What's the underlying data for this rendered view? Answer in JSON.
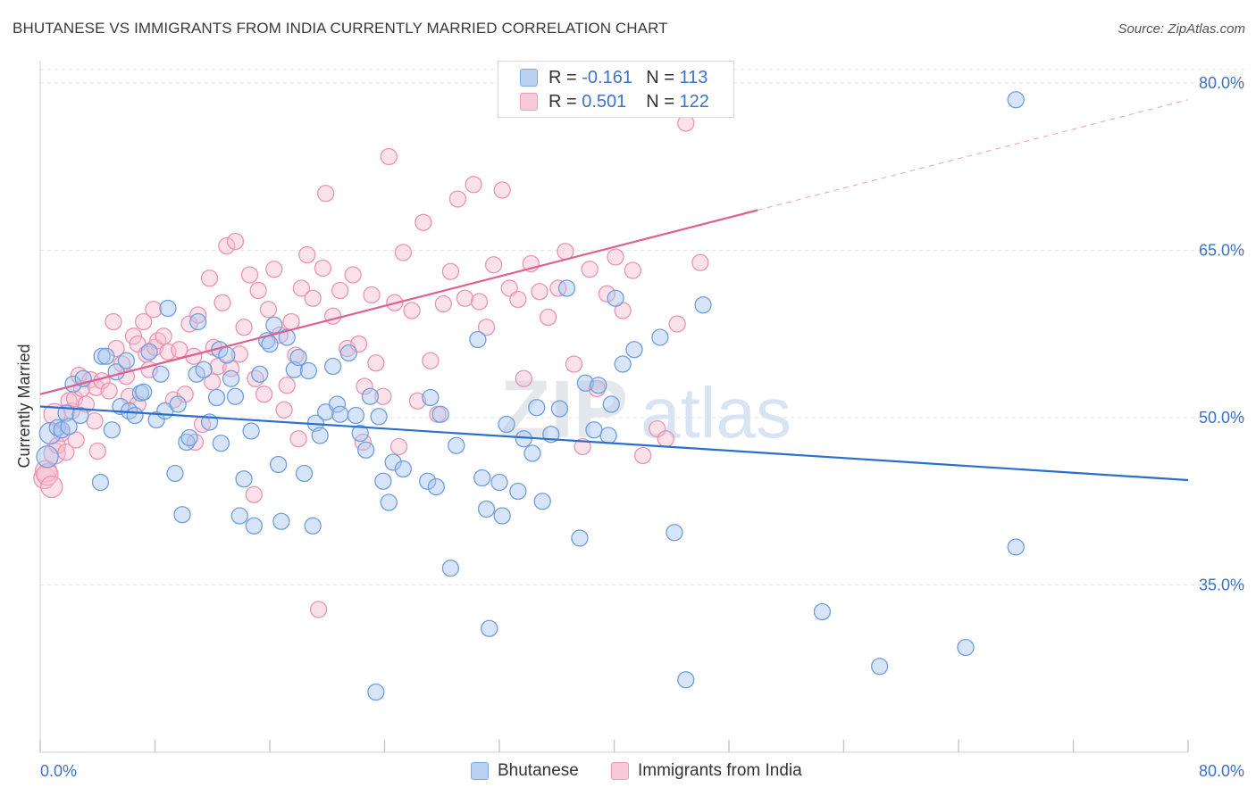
{
  "title": "BHUTANESE VS IMMIGRANTS FROM INDIA CURRENTLY MARRIED CORRELATION CHART",
  "source": "Source: ZipAtlas.com",
  "watermark": "ZIPatlas",
  "colors": {
    "blue_fill": "#a8c6f0",
    "blue_stroke": "#6f9fe0",
    "blue_line": "#2a6fd0",
    "pink_fill": "#f6bfd0",
    "pink_stroke": "#ee93b0",
    "pink_line": "#e0608f",
    "axis_text": "#3b73c8"
  },
  "legend": {
    "r_label": "R =",
    "n_label": "N =",
    "series": [
      {
        "r": "-0.161",
        "n": "113"
      },
      {
        "r": "0.501",
        "n": "122"
      }
    ]
  },
  "chart_data": {
    "type": "scatter",
    "title": "BHUTANESE VS IMMIGRANTS FROM INDIA CURRENTLY MARRIED CORRELATION CHART",
    "xlabel": "",
    "ylabel": "Currently Married",
    "xlim": [
      0,
      80
    ],
    "ylim": [
      20,
      82
    ],
    "x_ticks": [
      "0.0%",
      "80.0%"
    ],
    "y_ticks": [
      {
        "value": 35,
        "label": "35.0%"
      },
      {
        "value": 50,
        "label": "50.0%"
      },
      {
        "value": 65,
        "label": "65.0%"
      },
      {
        "value": 80,
        "label": "80.0%"
      }
    ],
    "grid": true,
    "legend_position": "bottom",
    "series": [
      {
        "name": "Bhutanese",
        "color": "#a8c6f0",
        "trend": {
          "x": [
            0,
            80
          ],
          "y": [
            51.0,
            44.4
          ],
          "extrapolated_from": null
        },
        "points": [
          [
            0.5,
            46.5
          ],
          [
            0.7,
            48.6
          ],
          [
            1.2,
            49.1
          ],
          [
            1.5,
            48.9
          ],
          [
            1.8,
            50.4
          ],
          [
            2.0,
            49.2
          ],
          [
            2.3,
            53.0
          ],
          [
            2.8,
            50.2
          ],
          [
            3.0,
            53.5
          ],
          [
            4.2,
            44.2
          ],
          [
            4.3,
            55.5
          ],
          [
            4.6,
            55.5
          ],
          [
            5.0,
            48.9
          ],
          [
            5.3,
            54.1
          ],
          [
            5.6,
            51.0
          ],
          [
            6.0,
            55.1
          ],
          [
            6.2,
            50.6
          ],
          [
            6.6,
            50.2
          ],
          [
            7.0,
            52.2
          ],
          [
            7.2,
            52.3
          ],
          [
            7.6,
            55.9
          ],
          [
            8.1,
            49.8
          ],
          [
            8.4,
            53.9
          ],
          [
            8.7,
            50.6
          ],
          [
            8.9,
            59.8
          ],
          [
            9.4,
            45.0
          ],
          [
            9.6,
            51.2
          ],
          [
            9.9,
            41.3
          ],
          [
            10.2,
            47.8
          ],
          [
            10.4,
            48.2
          ],
          [
            10.9,
            53.9
          ],
          [
            11.0,
            58.6
          ],
          [
            11.4,
            54.3
          ],
          [
            11.8,
            49.6
          ],
          [
            12.3,
            51.8
          ],
          [
            12.5,
            56.1
          ],
          [
            12.6,
            47.7
          ],
          [
            13.0,
            55.6
          ],
          [
            13.3,
            53.5
          ],
          [
            13.6,
            51.9
          ],
          [
            13.9,
            41.2
          ],
          [
            14.2,
            44.5
          ],
          [
            14.7,
            48.8
          ],
          [
            14.9,
            40.3
          ],
          [
            15.3,
            53.9
          ],
          [
            15.8,
            56.9
          ],
          [
            16.0,
            56.6
          ],
          [
            16.3,
            58.3
          ],
          [
            16.6,
            45.8
          ],
          [
            16.8,
            40.7
          ],
          [
            17.2,
            57.2
          ],
          [
            17.7,
            54.3
          ],
          [
            18.0,
            55.4
          ],
          [
            18.4,
            45.0
          ],
          [
            18.7,
            54.2
          ],
          [
            19.0,
            40.3
          ],
          [
            19.2,
            49.5
          ],
          [
            19.5,
            48.4
          ],
          [
            19.9,
            50.5
          ],
          [
            20.4,
            54.6
          ],
          [
            20.7,
            51.2
          ],
          [
            20.9,
            50.3
          ],
          [
            21.5,
            55.8
          ],
          [
            22.0,
            50.2
          ],
          [
            22.3,
            48.6
          ],
          [
            22.7,
            47.1
          ],
          [
            23.0,
            51.9
          ],
          [
            23.6,
            50.1
          ],
          [
            23.4,
            25.4
          ],
          [
            23.9,
            44.3
          ],
          [
            24.3,
            42.4
          ],
          [
            24.6,
            46.0
          ],
          [
            25.3,
            45.4
          ],
          [
            27.0,
            44.3
          ],
          [
            27.2,
            51.8
          ],
          [
            27.6,
            43.8
          ],
          [
            27.9,
            50.3
          ],
          [
            28.6,
            36.5
          ],
          [
            29.0,
            47.5
          ],
          [
            30.5,
            57.0
          ],
          [
            30.8,
            44.6
          ],
          [
            31.1,
            41.8
          ],
          [
            31.3,
            31.1
          ],
          [
            32.0,
            44.2
          ],
          [
            32.2,
            41.2
          ],
          [
            32.5,
            49.4
          ],
          [
            33.3,
            43.4
          ],
          [
            33.7,
            48.1
          ],
          [
            34.3,
            46.8
          ],
          [
            34.6,
            50.9
          ],
          [
            35.0,
            42.5
          ],
          [
            35.6,
            48.5
          ],
          [
            36.2,
            50.8
          ],
          [
            36.7,
            61.6
          ],
          [
            37.6,
            39.2
          ],
          [
            38.0,
            53.1
          ],
          [
            38.6,
            48.9
          ],
          [
            38.9,
            52.9
          ],
          [
            39.6,
            48.4
          ],
          [
            39.8,
            51.2
          ],
          [
            40.1,
            60.7
          ],
          [
            40.6,
            54.8
          ],
          [
            41.4,
            56.1
          ],
          [
            43.2,
            57.2
          ],
          [
            44.2,
            39.7
          ],
          [
            45.0,
            26.5
          ],
          [
            46.2,
            60.1
          ],
          [
            54.5,
            32.6
          ],
          [
            58.5,
            27.7
          ],
          [
            64.5,
            29.4
          ],
          [
            68.0,
            38.4
          ],
          [
            68.0,
            78.5
          ]
        ]
      },
      {
        "name": "Immigrants from India",
        "color": "#f6bfd0",
        "trend": {
          "x": [
            0,
            50
          ],
          "y": [
            52.1,
            68.6
          ],
          "extrapolated_to": [
            80,
            78.5
          ]
        },
        "points": [
          [
            0.3,
            44.6
          ],
          [
            0.4,
            45.2
          ],
          [
            0.5,
            44.9
          ],
          [
            0.8,
            43.8
          ],
          [
            1.0,
            46.8
          ],
          [
            1.2,
            47.5
          ],
          [
            1.5,
            48.6
          ],
          [
            1.8,
            46.9
          ],
          [
            2.0,
            51.5
          ],
          [
            2.2,
            50.6
          ],
          [
            2.4,
            51.7
          ],
          [
            2.7,
            53.8
          ],
          [
            2.9,
            52.6
          ],
          [
            3.2,
            51.2
          ],
          [
            3.5,
            53.4
          ],
          [
            3.9,
            52.7
          ],
          [
            4.3,
            53.3
          ],
          [
            4.8,
            52.4
          ],
          [
            5.1,
            58.6
          ],
          [
            5.3,
            56.2
          ],
          [
            5.7,
            54.8
          ],
          [
            6.0,
            53.7
          ],
          [
            6.2,
            51.9
          ],
          [
            6.5,
            57.3
          ],
          [
            6.8,
            56.6
          ],
          [
            7.2,
            58.6
          ],
          [
            7.4,
            55.7
          ],
          [
            7.6,
            54.3
          ],
          [
            8.0,
            56.3
          ],
          [
            8.2,
            56.9
          ],
          [
            8.6,
            57.3
          ],
          [
            8.9,
            55.9
          ],
          [
            9.3,
            51.6
          ],
          [
            9.7,
            56.1
          ],
          [
            10.1,
            52.1
          ],
          [
            10.4,
            58.4
          ],
          [
            10.7,
            55.5
          ],
          [
            11.0,
            59.2
          ],
          [
            11.3,
            49.4
          ],
          [
            11.8,
            62.5
          ],
          [
            12.1,
            56.3
          ],
          [
            12.4,
            54.6
          ],
          [
            12.7,
            60.3
          ],
          [
            13.0,
            65.4
          ],
          [
            13.3,
            54.4
          ],
          [
            13.6,
            65.8
          ],
          [
            13.9,
            55.7
          ],
          [
            14.2,
            58.1
          ],
          [
            14.6,
            62.8
          ],
          [
            14.9,
            43.1
          ],
          [
            15.2,
            61.4
          ],
          [
            15.6,
            52.1
          ],
          [
            15.9,
            59.7
          ],
          [
            16.3,
            63.3
          ],
          [
            16.7,
            57.4
          ],
          [
            17.2,
            52.9
          ],
          [
            17.5,
            58.6
          ],
          [
            17.8,
            55.6
          ],
          [
            18.2,
            61.6
          ],
          [
            18.6,
            64.6
          ],
          [
            19.0,
            60.7
          ],
          [
            19.4,
            32.8
          ],
          [
            19.7,
            63.4
          ],
          [
            19.9,
            70.1
          ],
          [
            20.4,
            59.1
          ],
          [
            20.9,
            61.4
          ],
          [
            21.4,
            56.2
          ],
          [
            21.8,
            62.8
          ],
          [
            22.2,
            56.6
          ],
          [
            22.6,
            52.8
          ],
          [
            23.1,
            61.0
          ],
          [
            23.4,
            54.9
          ],
          [
            23.9,
            51.9
          ],
          [
            24.3,
            73.4
          ],
          [
            24.7,
            60.3
          ],
          [
            25.3,
            64.8
          ],
          [
            25.9,
            59.6
          ],
          [
            26.3,
            51.5
          ],
          [
            26.7,
            67.5
          ],
          [
            27.2,
            55.1
          ],
          [
            27.7,
            50.3
          ],
          [
            28.1,
            60.2
          ],
          [
            28.6,
            63.1
          ],
          [
            29.1,
            69.6
          ],
          [
            29.6,
            60.7
          ],
          [
            30.2,
            70.9
          ],
          [
            30.6,
            60.4
          ],
          [
            31.1,
            58.1
          ],
          [
            31.6,
            63.7
          ],
          [
            32.2,
            70.4
          ],
          [
            32.7,
            61.6
          ],
          [
            33.3,
            60.6
          ],
          [
            33.7,
            53.5
          ],
          [
            34.2,
            63.8
          ],
          [
            34.8,
            61.3
          ],
          [
            35.4,
            59.0
          ],
          [
            36.1,
            61.6
          ],
          [
            36.6,
            64.9
          ],
          [
            37.2,
            54.8
          ],
          [
            37.8,
            47.4
          ],
          [
            38.3,
            63.3
          ],
          [
            38.8,
            52.6
          ],
          [
            39.5,
            61.1
          ],
          [
            40.1,
            64.4
          ],
          [
            40.6,
            59.6
          ],
          [
            41.3,
            63.2
          ],
          [
            42.0,
            46.6
          ],
          [
            43.0,
            49.0
          ],
          [
            43.6,
            48.1
          ],
          [
            44.4,
            58.4
          ],
          [
            45.0,
            76.4
          ],
          [
            46.0,
            63.9
          ],
          [
            22.5,
            47.8
          ],
          [
            17.0,
            50.7
          ],
          [
            18.0,
            48.1
          ],
          [
            25.0,
            47.4
          ],
          [
            7.9,
            59.7
          ],
          [
            12.0,
            53.2
          ],
          [
            15.0,
            53.5
          ],
          [
            6.8,
            51.2
          ],
          [
            10.8,
            47.8
          ],
          [
            3.8,
            49.7
          ],
          [
            1.0,
            50.3
          ],
          [
            2.5,
            48.0
          ],
          [
            4.0,
            47.0
          ]
        ]
      }
    ]
  },
  "x_axis": {
    "left_label": "0.0%",
    "right_label": "80.0%"
  },
  "y_axis_label": "Currently Married",
  "bottom_legend": [
    {
      "label": "Bhutanese"
    },
    {
      "label": "Immigrants from India"
    }
  ]
}
